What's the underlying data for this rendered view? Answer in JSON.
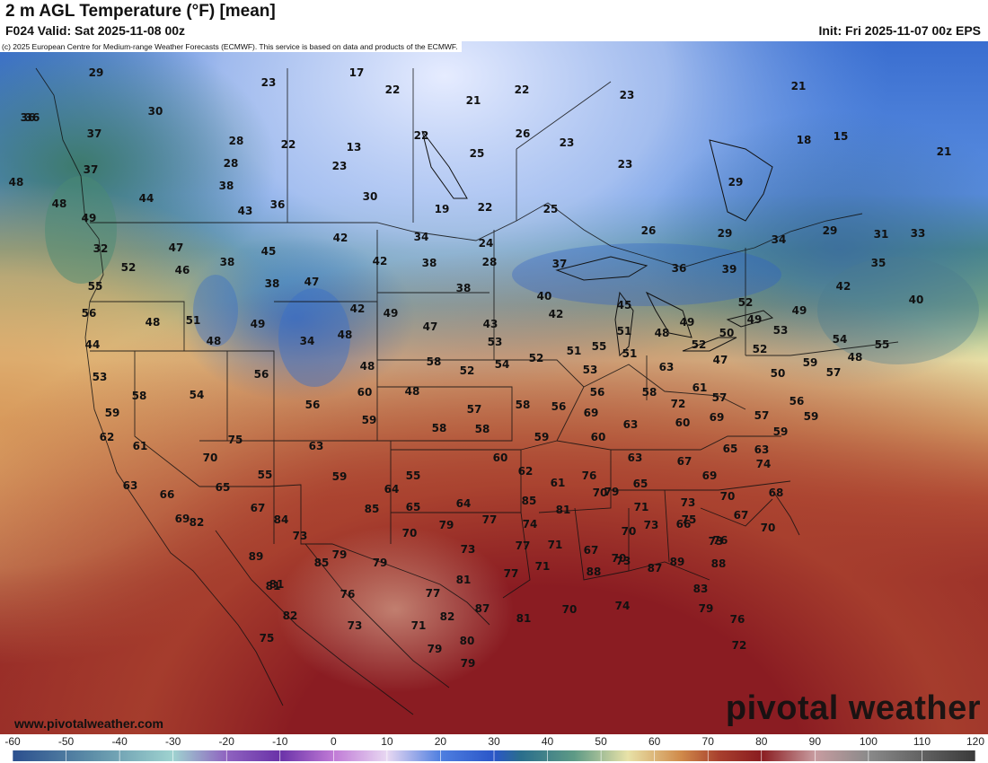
{
  "header": {
    "title": "2 m AGL Temperature (°F) [mean]",
    "valid": "F024 Valid: Sat 2025-11-08 00z",
    "init": "Init: Fri 2025-11-07 00z EPS"
  },
  "credit": "(c) 2025 European Centre for Medium-range Weather Forecasts (ECMWF). This service is based on data and products of the ECMWF.",
  "footer": {
    "website": "www.pivotalweather.com",
    "brand": "pivotal weather"
  },
  "colorbar": {
    "tick_labels": [
      "-60",
      "-50",
      "-40",
      "-30",
      "-20",
      "-10",
      "0",
      "10",
      "20",
      "30",
      "40",
      "50",
      "60",
      "70",
      "80",
      "90",
      "100",
      "110",
      "120"
    ],
    "stops": [
      {
        "value": -60,
        "color": "#2b4f8e"
      },
      {
        "value": -45,
        "color": "#5e8fa8"
      },
      {
        "value": -30,
        "color": "#9fd3d0"
      },
      {
        "value": -20,
        "color": "#8f63c0"
      },
      {
        "value": -10,
        "color": "#6a32a8"
      },
      {
        "value": 0,
        "color": "#c07ad6"
      },
      {
        "value": 10,
        "color": "#e8d8f2"
      },
      {
        "value": 20,
        "color": "#4f7fe0"
      },
      {
        "value": 30,
        "color": "#2a56c8"
      },
      {
        "value": 35,
        "color": "#2a6e8c"
      },
      {
        "value": 45,
        "color": "#5e9a86"
      },
      {
        "value": 55,
        "color": "#e8e2a8"
      },
      {
        "value": 65,
        "color": "#d08a4a"
      },
      {
        "value": 72,
        "color": "#a8402e"
      },
      {
        "value": 80,
        "color": "#8a1c20"
      },
      {
        "value": 90,
        "color": "#c89ca0"
      },
      {
        "value": 100,
        "color": "#8a8a8a"
      },
      {
        "value": 120,
        "color": "#3a3a3a"
      }
    ]
  },
  "map": {
    "temperature_labels": [
      "29",
      "17",
      "23",
      "22",
      "21",
      "22",
      "30",
      "36",
      "28",
      "22",
      "13",
      "22",
      "26",
      "23",
      "23",
      "21",
      "36",
      "37",
      "28",
      "25",
      "18",
      "15",
      "37",
      "23",
      "23",
      "21",
      "48",
      "44",
      "30",
      "19",
      "22",
      "25",
      "29",
      "38",
      "43",
      "36",
      "48",
      "49",
      "42",
      "34",
      "24",
      "26",
      "29",
      "34",
      "29",
      "31",
      "33",
      "32",
      "47",
      "45",
      "42",
      "38",
      "28",
      "37",
      "36",
      "39",
      "35",
      "52",
      "46",
      "38",
      "47",
      "38",
      "40",
      "48",
      "38",
      "42",
      "40",
      "55",
      "56",
      "48",
      "51",
      "49",
      "34",
      "42",
      "49",
      "47",
      "43",
      "42",
      "45",
      "51",
      "48",
      "49",
      "50",
      "49",
      "53",
      "49",
      "54",
      "44",
      "48",
      "53",
      "52",
      "52",
      "54",
      "51",
      "55",
      "51",
      "63",
      "52",
      "47",
      "52",
      "53",
      "56",
      "48",
      "48",
      "52",
      "53",
      "50",
      "59",
      "48",
      "55",
      "58",
      "54",
      "56",
      "60",
      "58",
      "57",
      "58",
      "56",
      "56",
      "58",
      "61",
      "69",
      "57",
      "56",
      "57",
      "59",
      "59",
      "58",
      "58",
      "59",
      "69",
      "63",
      "72",
      "60",
      "57",
      "59",
      "59",
      "62",
      "75",
      "63",
      "60",
      "63",
      "67",
      "65",
      "63",
      "61",
      "59",
      "70",
      "55",
      "55",
      "60",
      "62",
      "61",
      "76",
      "79",
      "65",
      "69",
      "74",
      "68",
      "66",
      "65",
      "64",
      "65",
      "64",
      "85",
      "81",
      "70",
      "71",
      "73",
      "70",
      "67",
      "66",
      "63",
      "67",
      "85",
      "79",
      "77",
      "74",
      "70",
      "73",
      "75",
      "73",
      "70",
      "69",
      "84",
      "70",
      "73",
      "77",
      "71",
      "67",
      "70",
      "87",
      "76",
      "82",
      "81",
      "73",
      "79",
      "79",
      "77",
      "71",
      "88",
      "73",
      "89",
      "88",
      "83",
      "75",
      "89",
      "81",
      "85",
      "76",
      "77",
      "81",
      "87",
      "81",
      "70",
      "74",
      "79",
      "76",
      "82",
      "73",
      "71",
      "82",
      "79",
      "80",
      "79",
      "72"
    ]
  }
}
